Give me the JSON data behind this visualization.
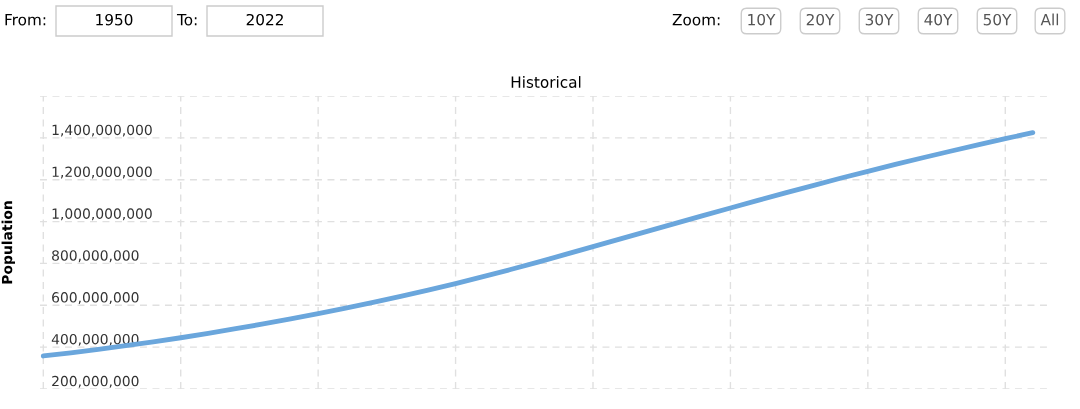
{
  "chart_data": {
    "type": "line",
    "title": "Historical",
    "ylabel": "Population",
    "categories": [
      null,
      null,
      null,
      null,
      null,
      null,
      null,
      null,
      null,
      null,
      null,
      null,
      null,
      null,
      null,
      null,
      null,
      null,
      null,
      null,
      null,
      null,
      null,
      null,
      null,
      null,
      null,
      null,
      null,
      null,
      null,
      null,
      null,
      null,
      null,
      null,
      null
    ],
    "series": [
      {
        "color": "#6aa6dc",
        "values": [
          358000000,
          373000000,
          389000000,
          407000000,
          425000000,
          445000000,
          466000000,
          488000000,
          511000000,
          535000000,
          560000000,
          586000000,
          614000000,
          642000000,
          672000000,
          704000000,
          737000000,
          771000000,
          806000000,
          843000000,
          880000000,
          917000000,
          954000000,
          991000000,
          1028000000,
          1065000000,
          1101000000,
          1137000000,
          1172000000,
          1207000000,
          1240000000,
          1273000000,
          1305000000,
          1336000000,
          1366000000,
          1396000000,
          1425000000
        ]
      }
    ],
    "ylim": [
      200000000,
      1600000000
    ],
    "yticks": [
      {
        "value": 200000000,
        "label": "200,000,000"
      },
      {
        "value": 400000000,
        "label": "400,000,000"
      },
      {
        "value": 600000000,
        "label": "600,000,000"
      },
      {
        "value": 800000000,
        "label": "800,000,000"
      },
      {
        "value": 1000000000,
        "label": "1,000,000,000"
      },
      {
        "value": 1200000000,
        "label": "1,200,000,000"
      },
      {
        "value": 1400000000,
        "label": "1,400,000,000"
      },
      {
        "value": 1600000000,
        "label": null
      }
    ],
    "grid": true,
    "line_style": "solid",
    "marker": "none",
    "annotations": [
      "From:",
      "1950",
      "To:",
      "2022",
      "Zoom:",
      "10Y",
      "20Y",
      "30Y",
      "40Y",
      "50Y",
      "All"
    ]
  }
}
